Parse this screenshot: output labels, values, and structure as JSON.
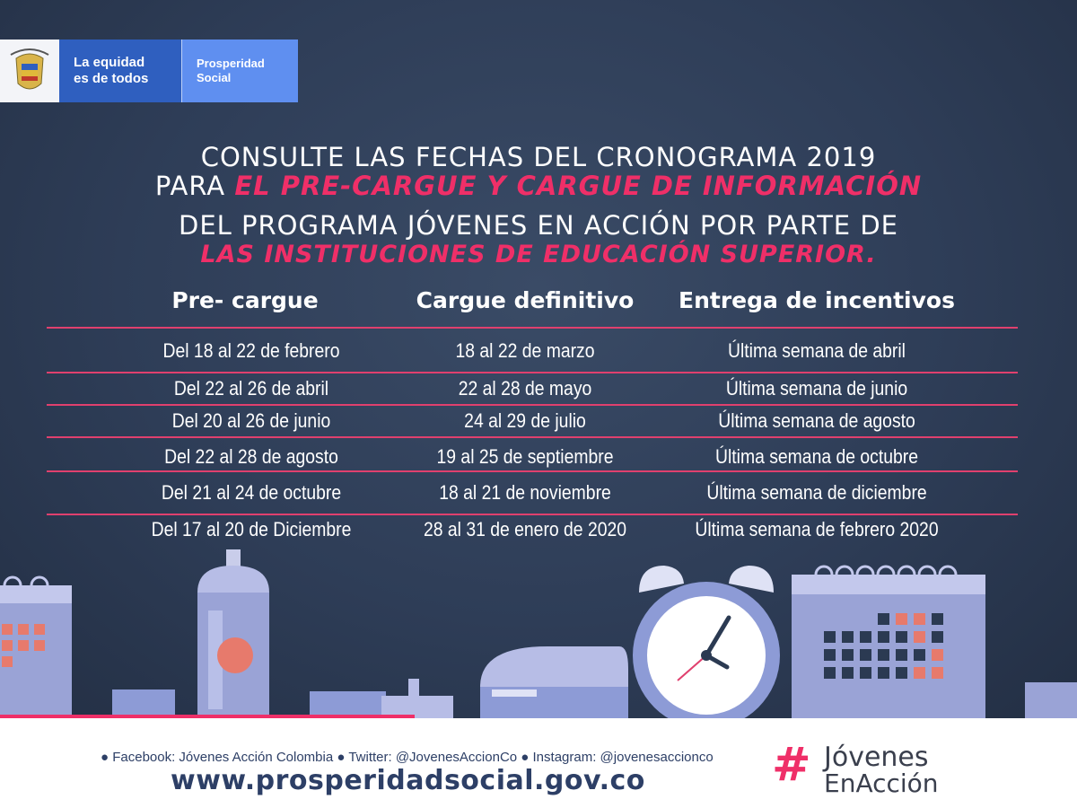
{
  "header": {
    "logo_left_line1": "La equidad",
    "logo_left_line2": "es de todos",
    "logo_right_line1": "Prosperidad",
    "logo_right_line2": "Social"
  },
  "headline": {
    "line1": "CONSULTE LAS FECHAS DEL CRONOGRAMA 2019",
    "line2_prefix": "PARA",
    "line2_highlight": "EL PRE-CARGUE Y CARGUE DE INFORMACIÓN",
    "line3": "DEL PROGRAMA JÓVENES EN ACCIÓN POR PARTE DE",
    "line4_highlight": "LAS INSTITUCIONES DE EDUCACIÓN SUPERIOR."
  },
  "schedule": {
    "headers": [
      "Pre- cargue",
      "Cargue definitivo",
      "Entrega de incentivos"
    ],
    "rows": [
      [
        "Del 18 al 22 de febrero",
        "18 al 22 de marzo",
        "Última semana de abril"
      ],
      [
        "Del 22 al 26 de abril",
        "22 al 28 de mayo",
        "Última semana de junio"
      ],
      [
        "Del 20 al 26 de junio",
        "24 al 29 de julio",
        "Última semana de agosto"
      ],
      [
        "Del 22 al 28 de agosto",
        "19 al 25 de septiembre",
        "Última semana de octubre"
      ],
      [
        "Del 21 al 24 de octubre",
        "18 al 21 de noviembre",
        "Última semana de diciembre"
      ],
      [
        "Del 17 al 20 de Diciembre",
        "28 al 31 de enero de 2020",
        "Última semana de febrero 2020"
      ]
    ]
  },
  "footer": {
    "social": "● Facebook: Jóvenes Acción Colombia  ●  Twitter: @JovenesAccionCo  ●  Instagram: @jovenesaccionco",
    "url": "www.prosperidadsocial.gov.co",
    "brand_hash": "#",
    "brand_line1": "Jóvenes",
    "brand_line2": "EnAcción"
  },
  "colors": {
    "background": "#2e3d57",
    "accent_pink": "#ef2f68",
    "text_white": "#ffffff",
    "footer_text": "#2d3f66"
  }
}
